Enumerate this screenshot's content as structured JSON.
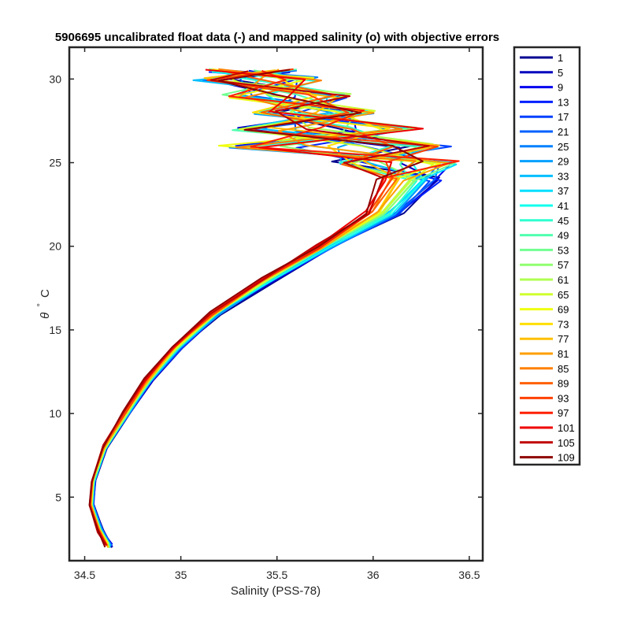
{
  "chart_data": {
    "type": "line",
    "title": "5906695 uncalibrated float data (-) and mapped salinity (o) with objective errors",
    "xlabel": "Salinity (PSS-78)",
    "ylabel_symbol": "θ",
    "ylabel_degree": "°",
    "ylabel_unit": "C",
    "xlim": [
      34.42,
      36.57
    ],
    "ylim": [
      1.2,
      31.9
    ],
    "xticks": [
      34.5,
      35,
      35.5,
      36,
      36.5
    ],
    "xtick_labels": [
      "34.5",
      "35",
      "35.5",
      "36",
      "36.5"
    ],
    "yticks": [
      5,
      10,
      15,
      20,
      25,
      30
    ],
    "ytick_labels": [
      "5",
      "10",
      "15",
      "20",
      "25",
      "30"
    ],
    "grid": false,
    "legend_position": "outside-right",
    "colormap": "jet",
    "profiles": [
      "1",
      "5",
      "9",
      "13",
      "17",
      "21",
      "25",
      "29",
      "33",
      "37",
      "41",
      "45",
      "49",
      "53",
      "57",
      "61",
      "65",
      "69",
      "73",
      "77",
      "81",
      "85",
      "89",
      "93",
      "97",
      "101",
      "105",
      "109"
    ],
    "series_note_colors": [
      "#00008f",
      "#0000bf",
      "#0000ef",
      "#0020ff",
      "#0040ff",
      "#0060ff",
      "#0080ff",
      "#009fff",
      "#00bfff",
      "#00dfff",
      "#10ffef",
      "#30ffcf",
      "#50ffaf",
      "#70ff8f",
      "#8fff70",
      "#afff50",
      "#cfff30",
      "#efff10",
      "#ffdf00",
      "#ffbf00",
      "#ff9f00",
      "#ff8000",
      "#ff6000",
      "#ff4000",
      "#ff2000",
      "#ef0000",
      "#bf0000",
      "#8f0000"
    ],
    "envelope": [
      {
        "theta": 2.1,
        "s_min": 34.6,
        "s_max": 34.65
      },
      {
        "theta": 3.0,
        "s_min": 34.56,
        "s_max": 34.6
      },
      {
        "theta": 4.5,
        "s_min": 34.52,
        "s_max": 34.55
      },
      {
        "theta": 6.0,
        "s_min": 34.53,
        "s_max": 34.56
      },
      {
        "theta": 8.0,
        "s_min": 34.59,
        "s_max": 34.62
      },
      {
        "theta": 10.0,
        "s_min": 34.69,
        "s_max": 34.74
      },
      {
        "theta": 12.0,
        "s_min": 34.8,
        "s_max": 34.86
      },
      {
        "theta": 14.0,
        "s_min": 34.94,
        "s_max": 35.02
      },
      {
        "theta": 16.0,
        "s_min": 35.14,
        "s_max": 35.22
      },
      {
        "theta": 18.0,
        "s_min": 35.4,
        "s_max": 35.5
      },
      {
        "theta": 20.0,
        "s_min": 35.68,
        "s_max": 35.82
      },
      {
        "theta": 22.0,
        "s_min": 35.92,
        "s_max": 36.18
      },
      {
        "theta": 24.0,
        "s_min": 35.96,
        "s_max": 36.42
      },
      {
        "theta": 25.0,
        "s_min": 35.78,
        "s_max": 36.46
      },
      {
        "theta": 26.0,
        "s_min": 35.14,
        "s_max": 36.45
      },
      {
        "theta": 27.0,
        "s_min": 35.24,
        "s_max": 36.3
      },
      {
        "theta": 28.0,
        "s_min": 35.35,
        "s_max": 36.05
      },
      {
        "theta": 29.0,
        "s_min": 35.2,
        "s_max": 35.9
      },
      {
        "theta": 30.0,
        "s_min": 35.06,
        "s_max": 35.75
      },
      {
        "theta": 30.5,
        "s_min": 35.1,
        "s_max": 35.62
      }
    ]
  }
}
